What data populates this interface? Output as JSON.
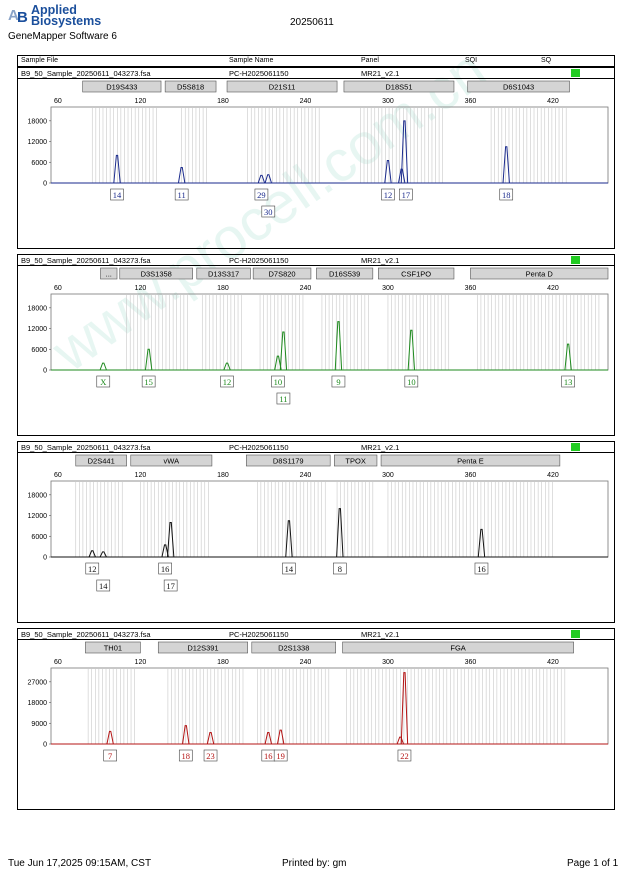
{
  "header": {
    "brand_line1": "Applied",
    "brand_line2": "Biosystems",
    "software": "GeneMapper Software 6",
    "date": "20250611",
    "brand_color": "#1b4f9c"
  },
  "columns": [
    "Sample File",
    "Sample Name",
    "Panel",
    "SQI",
    "SQ"
  ],
  "sample": {
    "file": "B9_50_Sample_20250611_043273.fsa",
    "name": "PC-H2025061150",
    "panel": "MR21_v2.1"
  },
  "footer": {
    "timestamp": "Tue Jun 17,2025 09:15AM, CST",
    "printed_by": "Printed by: gm",
    "page": "Page 1 of 1"
  },
  "watermark": "www.procell.com.cn",
  "chart_data": [
    {
      "type": "line",
      "color": "#1a2a8c",
      "x_ticks": [
        60,
        120,
        180,
        240,
        300,
        360,
        420
      ],
      "y_ticks": [
        "18000",
        "12000",
        "6000",
        "0"
      ],
      "ylim": [
        0,
        22000
      ],
      "xlim": [
        55,
        460
      ],
      "loci": [
        {
          "name": "D19S433",
          "start": 78,
          "end": 135
        },
        {
          "name": "D5S818",
          "start": 138,
          "end": 175
        },
        {
          "name": "D21S11",
          "start": 183,
          "end": 263
        },
        {
          "name": "D18S51",
          "start": 268,
          "end": 348
        },
        {
          "name": "D6S1043",
          "start": 358,
          "end": 432
        }
      ],
      "peaks": [
        {
          "x": 103,
          "h": 8000
        },
        {
          "x": 150,
          "h": 4500
        },
        {
          "x": 208,
          "h": 2200
        },
        {
          "x": 213,
          "h": 2400
        },
        {
          "x": 300,
          "h": 6500
        },
        {
          "x": 310,
          "h": 4000
        },
        {
          "x": 312,
          "h": 18000
        },
        {
          "x": 386,
          "h": 10500
        }
      ],
      "labels": [
        {
          "x": 103,
          "row": 1,
          "text": "14"
        },
        {
          "x": 150,
          "row": 1,
          "text": "11"
        },
        {
          "x": 208,
          "row": 1,
          "text": "29"
        },
        {
          "x": 213,
          "row": 1,
          "text": "30"
        },
        {
          "x": 300,
          "row": 1,
          "text": "12"
        },
        {
          "x": 313,
          "row": 1,
          "text": "17"
        },
        {
          "x": 386,
          "row": 1,
          "text": "18"
        }
      ],
      "bins": [
        [
          85,
          132
        ],
        [
          150,
          170
        ],
        [
          198,
          252
        ],
        [
          280,
          340
        ],
        [
          375,
          430
        ]
      ]
    },
    {
      "type": "line",
      "color": "#1e8a1e",
      "x_ticks": [
        60,
        120,
        180,
        240,
        300,
        360,
        420
      ],
      "y_ticks": [
        "18000",
        "12000",
        "6000",
        "0"
      ],
      "ylim": [
        0,
        22000
      ],
      "xlim": [
        55,
        460
      ],
      "loci": [
        {
          "name": "...",
          "start": 91,
          "end": 103
        },
        {
          "name": "D3S1358",
          "start": 105,
          "end": 158
        },
        {
          "name": "D13S317",
          "start": 161,
          "end": 200
        },
        {
          "name": "D7S820",
          "start": 202,
          "end": 244
        },
        {
          "name": "D16S539",
          "start": 248,
          "end": 289
        },
        {
          "name": "CSF1PO",
          "start": 293,
          "end": 348
        },
        {
          "name": "Penta D",
          "start": 360,
          "end": 460
        }
      ],
      "peaks": [
        {
          "x": 93,
          "h": 2000
        },
        {
          "x": 126,
          "h": 6000
        },
        {
          "x": 183,
          "h": 2000
        },
        {
          "x": 220,
          "h": 4000
        },
        {
          "x": 224,
          "h": 11000
        },
        {
          "x": 264,
          "h": 14000
        },
        {
          "x": 317,
          "h": 11500
        },
        {
          "x": 431,
          "h": 7500
        }
      ],
      "labels": [
        {
          "x": 93,
          "row": 1,
          "text": "X"
        },
        {
          "x": 126,
          "row": 1,
          "text": "15"
        },
        {
          "x": 183,
          "row": 1,
          "text": "12"
        },
        {
          "x": 220,
          "row": 1,
          "text": "10"
        },
        {
          "x": 224,
          "row": 1,
          "text": "11"
        },
        {
          "x": 264,
          "row": 1,
          "text": "9"
        },
        {
          "x": 317,
          "row": 1,
          "text": "10"
        },
        {
          "x": 431,
          "row": 1,
          "text": "13"
        }
      ],
      "bins": [
        [
          110,
          155
        ],
        [
          165,
          195
        ],
        [
          207,
          240
        ],
        [
          252,
          286
        ],
        [
          300,
          345
        ],
        [
          365,
          455
        ]
      ]
    },
    {
      "type": "line",
      "color": "#111111",
      "x_ticks": [
        60,
        120,
        180,
        240,
        300,
        360,
        420
      ],
      "y_ticks": [
        "18000",
        "12000",
        "6000",
        "0"
      ],
      "ylim": [
        0,
        22000
      ],
      "xlim": [
        55,
        460
      ],
      "loci": [
        {
          "name": "D2S441",
          "start": 73,
          "end": 110
        },
        {
          "name": "vWA",
          "start": 113,
          "end": 172
        },
        {
          "name": "D8S1179",
          "start": 197,
          "end": 258
        },
        {
          "name": "TPOX",
          "start": 261,
          "end": 292
        },
        {
          "name": "Penta E",
          "start": 295,
          "end": 425
        }
      ],
      "peaks": [
        {
          "x": 85,
          "h": 1800
        },
        {
          "x": 93,
          "h": 1500
        },
        {
          "x": 138,
          "h": 3500
        },
        {
          "x": 142,
          "h": 10000
        },
        {
          "x": 228,
          "h": 10500
        },
        {
          "x": 265,
          "h": 14000
        },
        {
          "x": 368,
          "h": 8000
        }
      ],
      "labels": [
        {
          "x": 85,
          "row": 1,
          "text": "12"
        },
        {
          "x": 93,
          "row": 1,
          "text": "14"
        },
        {
          "x": 138,
          "row": 1,
          "text": "16"
        },
        {
          "x": 142,
          "row": 1,
          "text": "17"
        },
        {
          "x": 228,
          "row": 1,
          "text": "14"
        },
        {
          "x": 265,
          "row": 1,
          "text": "8"
        },
        {
          "x": 368,
          "row": 1,
          "text": "16"
        }
      ],
      "bins": [
        [
          73,
          108
        ],
        [
          120,
          170
        ],
        [
          205,
          255
        ],
        [
          263,
          290
        ],
        [
          300,
          420
        ]
      ]
    },
    {
      "type": "line",
      "color": "#b41414",
      "x_ticks": [
        60,
        120,
        180,
        240,
        300,
        360,
        420
      ],
      "y_ticks": [
        "27000",
        "18000",
        "9000",
        "0"
      ],
      "ylim": [
        0,
        33000
      ],
      "xlim": [
        55,
        460
      ],
      "loci": [
        {
          "name": "TH01",
          "start": 80,
          "end": 120
        },
        {
          "name": "D12S391",
          "start": 133,
          "end": 198
        },
        {
          "name": "D2S1338",
          "start": 201,
          "end": 262
        },
        {
          "name": "FGA",
          "start": 267,
          "end": 435
        }
      ],
      "peaks": [
        {
          "x": 98,
          "h": 5500
        },
        {
          "x": 153,
          "h": 8000
        },
        {
          "x": 171,
          "h": 5000
        },
        {
          "x": 213,
          "h": 5000
        },
        {
          "x": 222,
          "h": 6000
        },
        {
          "x": 309,
          "h": 3000
        },
        {
          "x": 312,
          "h": 31000
        }
      ],
      "labels": [
        {
          "x": 98,
          "row": 1,
          "text": "7"
        },
        {
          "x": 153,
          "row": 1,
          "text": "18"
        },
        {
          "x": 171,
          "row": 1,
          "text": "23"
        },
        {
          "x": 213,
          "row": 1,
          "text": "16"
        },
        {
          "x": 222,
          "row": 1,
          "text": "19"
        },
        {
          "x": 312,
          "row": 1,
          "text": "22"
        }
      ],
      "bins": [
        [
          82,
          118
        ],
        [
          140,
          196
        ],
        [
          205,
          258
        ],
        [
          270,
          430
        ]
      ]
    }
  ]
}
